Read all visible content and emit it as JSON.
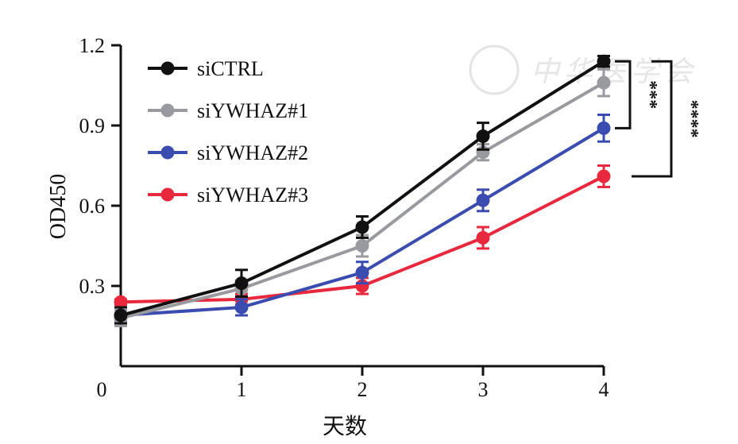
{
  "chart_data": {
    "type": "line",
    "title": "",
    "xlabel": "天数",
    "ylabel": "OD450",
    "x": [
      0,
      1,
      2,
      3,
      4
    ],
    "xlim": [
      0,
      4
    ],
    "ylim": [
      0,
      1.2
    ],
    "xticks": [
      "0",
      "1",
      "2",
      "3",
      "4"
    ],
    "yticks": [
      "0.3",
      "0.6",
      "0.9",
      "1.2"
    ],
    "ytick_values": [
      0.3,
      0.6,
      0.9,
      1.2
    ],
    "grid": false,
    "legend_position": "top-left",
    "series": [
      {
        "name": "siCTRL",
        "color": "#111111",
        "values": [
          0.19,
          0.31,
          0.52,
          0.86,
          1.14
        ],
        "errors": [
          0.03,
          0.05,
          0.04,
          0.05,
          0.02
        ]
      },
      {
        "name": "siYWHAZ#1",
        "color": "#999a9f",
        "values": [
          0.18,
          0.29,
          0.45,
          0.8,
          1.06
        ],
        "errors": [
          0.03,
          0.03,
          0.04,
          0.03,
          0.05
        ]
      },
      {
        "name": "siYWHAZ#2",
        "color": "#3b4cb0",
        "values": [
          0.19,
          0.22,
          0.35,
          0.62,
          0.89
        ],
        "errors": [
          0.02,
          0.03,
          0.04,
          0.04,
          0.05
        ]
      },
      {
        "name": "siYWHAZ#3",
        "color": "#e8283c",
        "values": [
          0.24,
          0.25,
          0.3,
          0.48,
          0.71
        ],
        "errors": [
          0.01,
          0.02,
          0.03,
          0.04,
          0.04
        ]
      }
    ],
    "annotations": [
      {
        "text": "***",
        "between": [
          "siCTRL",
          "siYWHAZ#2"
        ],
        "at_x": 4
      },
      {
        "text": "****",
        "between": [
          "siCTRL",
          "siYWHAZ#3"
        ],
        "at_x": 4
      }
    ]
  },
  "watermark": "中华医学会"
}
